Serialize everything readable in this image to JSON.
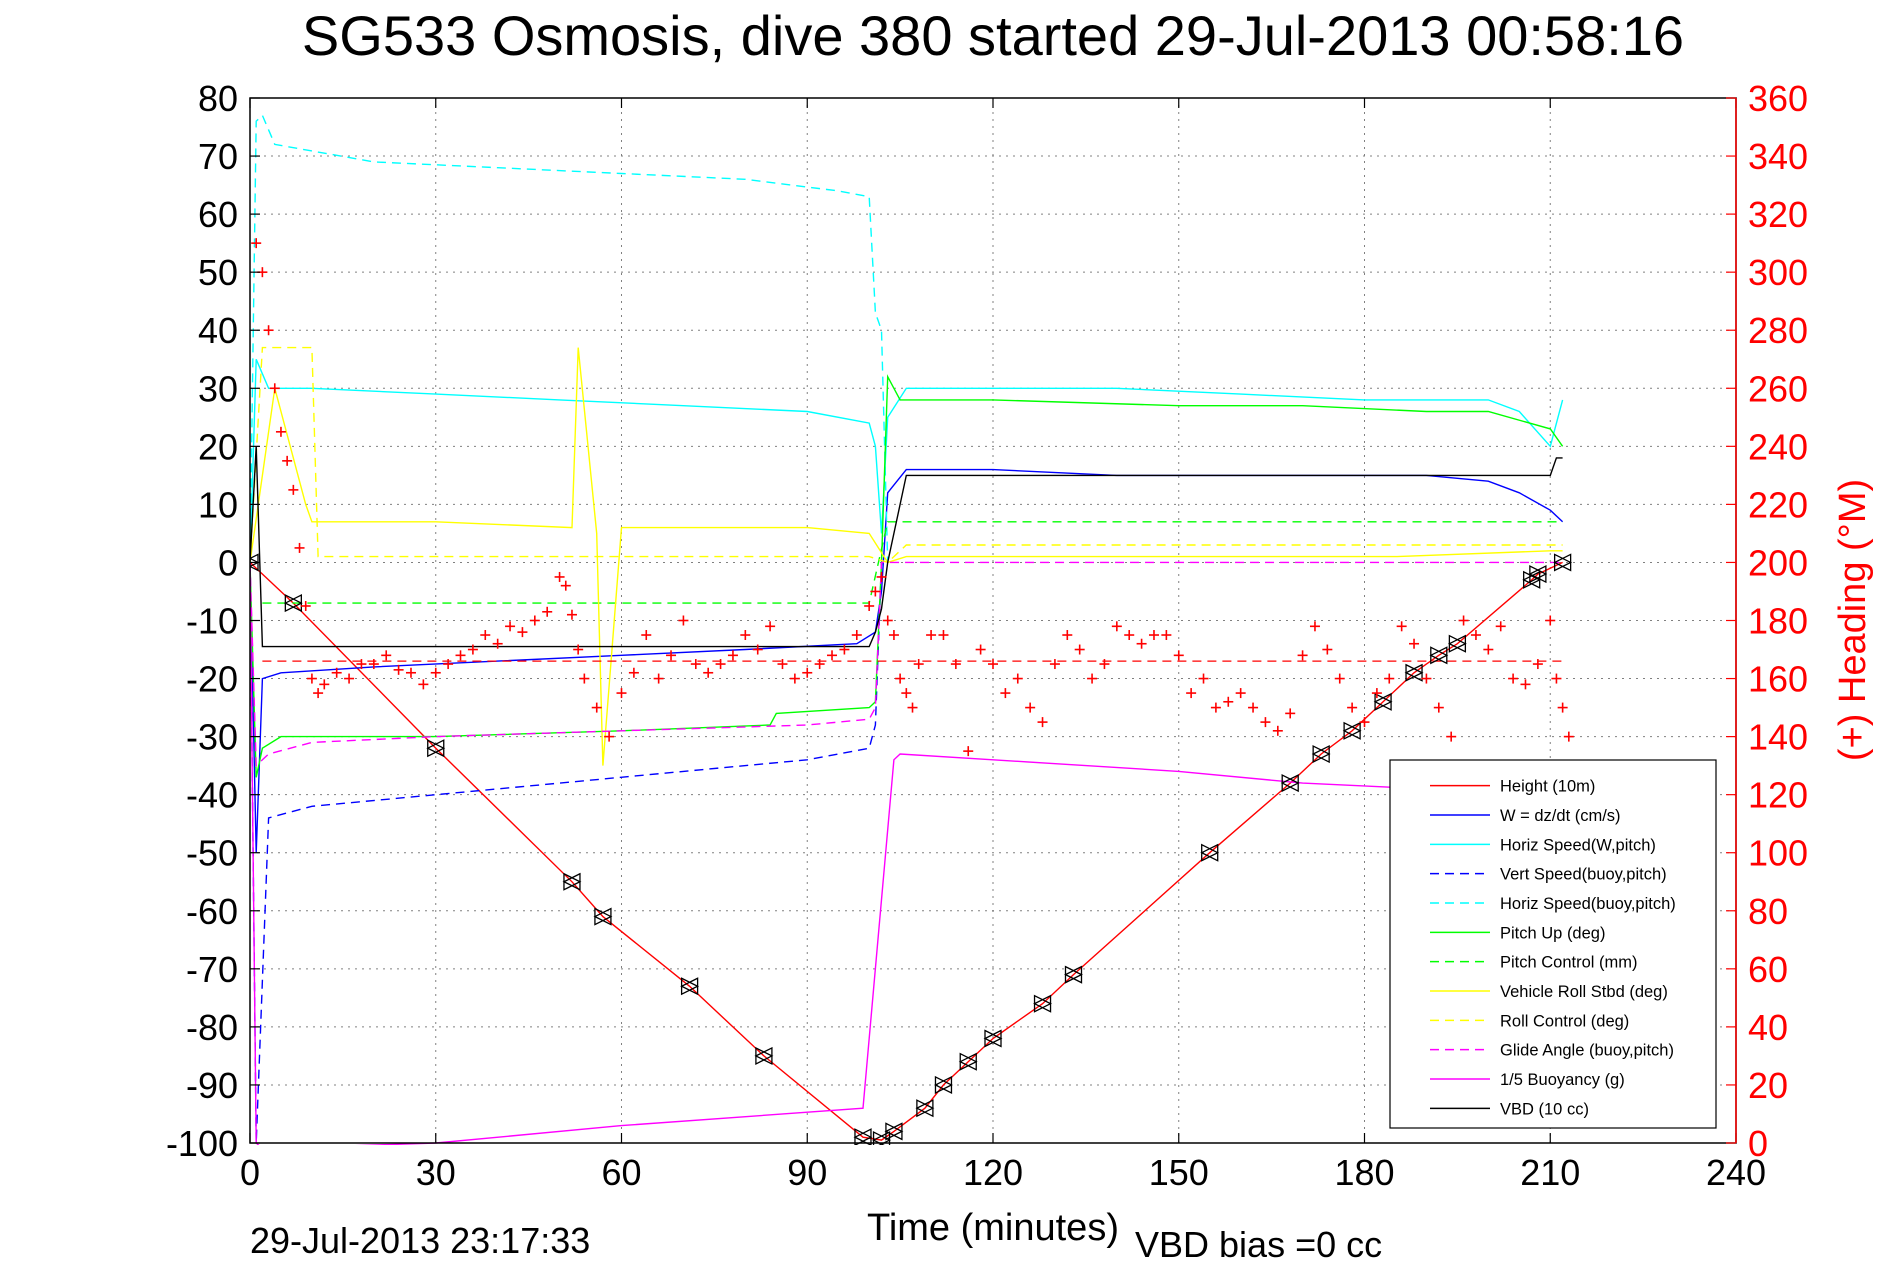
{
  "chart_data": {
    "type": "line",
    "title": "SG533 Osmosis, dive 380 started 29-Jul-2013 00:58:16",
    "xlabel": "Time (minutes)",
    "ylabel": "",
    "y2label": "(+) Heading (°M)",
    "xlim": [
      0,
      240
    ],
    "ylim": [
      -100,
      80
    ],
    "y2lim": [
      0,
      360
    ],
    "xticks": [
      "0",
      "30",
      "60",
      "90",
      "120",
      "150",
      "180",
      "210",
      "240"
    ],
    "yticks": [
      "80",
      "70",
      "60",
      "50",
      "40",
      "30",
      "20",
      "10",
      "0",
      "-10",
      "-20",
      "-30",
      "-40",
      "-50",
      "-60",
      "-70",
      "-80",
      "-90",
      "-100"
    ],
    "y2ticks": [
      "360",
      "340",
      "320",
      "300",
      "280",
      "260",
      "240",
      "220",
      "200",
      "180",
      "160",
      "140",
      "120",
      "100",
      "80",
      "60",
      "40",
      "20",
      "0"
    ],
    "grid": true,
    "legend_position": "bottom-right",
    "series": [
      {
        "name": "Height (10m)",
        "color": "#ff0000",
        "style": "solid",
        "x": [
          0,
          7,
          30,
          52,
          57,
          71,
          83,
          99,
          102,
          104,
          109,
          112,
          116,
          120,
          128,
          133,
          155,
          168,
          173,
          178,
          183,
          188,
          192,
          195,
          207,
          208,
          212
        ],
        "y": [
          0,
          -7,
          -32,
          -55,
          -61,
          -73,
          -85,
          -99,
          -99.5,
          -98,
          -94,
          -90,
          -86,
          -82,
          -76,
          -71,
          -50,
          -38,
          -33,
          -29,
          -24,
          -19,
          -16,
          -14,
          -3,
          -2,
          0
        ]
      },
      {
        "name": "W = dz/dt (cm/s)",
        "color": "#0000ff",
        "style": "solid",
        "x": [
          0,
          1,
          2,
          5,
          20,
          40,
          60,
          80,
          98,
          101,
          102,
          103,
          106,
          120,
          140,
          160,
          180,
          190,
          200,
          205,
          210,
          212
        ],
        "y": [
          0,
          -50,
          -20,
          -19,
          -18,
          -17,
          -16,
          -15,
          -14,
          -12,
          -5,
          12,
          16,
          16,
          15,
          15,
          15,
          15,
          14,
          12,
          9,
          7
        ]
      },
      {
        "name": "Horiz Speed(W,pitch)",
        "color": "#00ffff",
        "style": "solid",
        "x": [
          0,
          1,
          3,
          10,
          30,
          50,
          70,
          90,
          100,
          101,
          102,
          103,
          106,
          120,
          140,
          160,
          180,
          190,
          200,
          205,
          210,
          212
        ],
        "y": [
          0,
          35,
          30,
          30,
          29,
          28,
          27,
          26,
          24,
          20,
          5,
          25,
          30,
          30,
          30,
          29,
          28,
          28,
          28,
          26,
          20,
          28
        ]
      },
      {
        "name": "Vert Speed(buoy,pitch)",
        "color": "#0000ff",
        "style": "dashed",
        "x": [
          0,
          1,
          3,
          10,
          30,
          50,
          70,
          90,
          100,
          101,
          102
        ],
        "y": [
          0,
          -100,
          -44,
          -42,
          -40,
          -38,
          -36,
          -34,
          -32,
          -28,
          0
        ]
      },
      {
        "name": "Horiz Speed(buoy,pitch)",
        "color": "#00ffff",
        "style": "dashed",
        "x": [
          0,
          1,
          2,
          4,
          20,
          40,
          60,
          80,
          95,
          100,
          101,
          102,
          103
        ],
        "y": [
          0,
          76,
          77,
          72,
          69,
          68,
          67,
          66,
          64,
          63,
          43,
          40,
          0
        ]
      },
      {
        "name": "Pitch Up (deg)",
        "color": "#00ff00",
        "style": "solid",
        "x": [
          0,
          1,
          2,
          5,
          30,
          60,
          84,
          85,
          100,
          101,
          102,
          103,
          105,
          120,
          150,
          170,
          190,
          200,
          210,
          212
        ],
        "y": [
          0,
          -37,
          -32,
          -30,
          -30,
          -29,
          -28,
          -26,
          -25,
          -24,
          0,
          32,
          28,
          28,
          27,
          27,
          26,
          26,
          23,
          20
        ]
      },
      {
        "name": "Pitch Control (mm)",
        "color": "#00ff00",
        "style": "dashed",
        "x": [
          2,
          100,
          103,
          212
        ],
        "y": [
          -7,
          -7,
          7,
          7
        ]
      },
      {
        "name": "Vehicle Roll Stbd (deg)",
        "color": "#ffff00",
        "style": "solid",
        "x": [
          0,
          4,
          9,
          10,
          30,
          52,
          53,
          56,
          57,
          60,
          90,
          100,
          103,
          106,
          130,
          170,
          175,
          185,
          210,
          212
        ],
        "y": [
          0,
          30,
          10,
          7,
          7,
          6,
          37,
          5,
          -35,
          6,
          6,
          5,
          0,
          1,
          1,
          1,
          1,
          1,
          2,
          2
        ]
      },
      {
        "name": "Roll Control (deg)",
        "color": "#ffff00",
        "style": "dashed",
        "x": [
          0,
          2,
          10,
          11,
          30,
          90,
          100,
          103,
          106,
          150,
          200,
          210,
          212
        ],
        "y": [
          0,
          37,
          37,
          1,
          1,
          1,
          1,
          0,
          3,
          3,
          3,
          3,
          3
        ]
      },
      {
        "name": "Glide Angle (buoy,pitch)",
        "color": "#ff00ff",
        "style": "dashed",
        "x": [
          0,
          1,
          3,
          10,
          30,
          60,
          90,
          100,
          101,
          102,
          103,
          212
        ],
        "y": [
          0,
          -35,
          -33,
          -31,
          -30,
          -29,
          -28,
          -27,
          -25,
          0,
          0,
          0
        ]
      },
      {
        "name": "1/5 Buoyancy (g)",
        "color": "#ff00ff",
        "style": "solid",
        "x": [
          0,
          1,
          2,
          30,
          60,
          99,
          104,
          105,
          120,
          150,
          170,
          190,
          212
        ],
        "y": [
          0,
          -100,
          -101,
          -100,
          -97,
          -94,
          -34,
          -33,
          -34,
          -36,
          -38,
          -39,
          -40
        ]
      },
      {
        "name": "VBD (10 cc)",
        "color": "#000000",
        "style": "solid",
        "x": [
          0,
          1,
          2,
          100,
          101,
          102,
          103,
          105,
          106,
          210,
          211,
          212
        ],
        "y": [
          0,
          20,
          -14.5,
          -14.5,
          -12,
          -8,
          0,
          10,
          15,
          15,
          18,
          18
        ]
      }
    ],
    "heading_points": {
      "name": "(+) Heading (°M)",
      "color": "#ff0000",
      "marker": "+",
      "axis": "right",
      "x": [
        1,
        2,
        3,
        4,
        5,
        6,
        7,
        8,
        9,
        10,
        11,
        12,
        14,
        16,
        18,
        20,
        22,
        24,
        26,
        28,
        30,
        32,
        34,
        36,
        38,
        40,
        42,
        44,
        46,
        48,
        50,
        51,
        52,
        53,
        54,
        56,
        58,
        60,
        62,
        64,
        66,
        68,
        70,
        72,
        74,
        76,
        78,
        80,
        82,
        84,
        86,
        88,
        90,
        92,
        94,
        96,
        98,
        100,
        101,
        102,
        103,
        104,
        105,
        106,
        107,
        108,
        110,
        112,
        114,
        116,
        118,
        120,
        122,
        124,
        126,
        128,
        130,
        132,
        134,
        136,
        138,
        140,
        142,
        144,
        146,
        148,
        150,
        152,
        154,
        156,
        158,
        160,
        162,
        164,
        166,
        168,
        170,
        172,
        174,
        176,
        178,
        180,
        182,
        184,
        186,
        188,
        190,
        192,
        194,
        196,
        198,
        200,
        202,
        204,
        206,
        208,
        210,
        211,
        212,
        213
      ],
      "y": [
        310,
        300,
        280,
        260,
        245,
        235,
        225,
        205,
        185,
        160,
        155,
        158,
        162,
        160,
        165,
        165,
        168,
        163,
        162,
        158,
        162,
        165,
        168,
        170,
        175,
        172,
        178,
        176,
        180,
        183,
        195,
        192,
        182,
        170,
        160,
        150,
        140,
        155,
        162,
        175,
        160,
        168,
        180,
        165,
        162,
        165,
        168,
        175,
        170,
        178,
        165,
        160,
        162,
        165,
        168,
        170,
        175,
        185,
        190,
        195,
        180,
        175,
        160,
        155,
        150,
        165,
        175,
        175,
        165,
        135,
        170,
        165,
        155,
        160,
        150,
        145,
        165,
        175,
        170,
        160,
        165,
        178,
        175,
        172,
        175,
        175,
        168,
        155,
        160,
        150,
        152,
        155,
        150,
        145,
        142,
        148,
        168,
        178,
        170,
        160,
        150,
        145,
        155,
        160,
        178,
        172,
        160,
        150,
        140,
        180,
        175,
        170,
        178,
        160,
        158,
        165,
        180,
        160,
        150,
        140
      ]
    },
    "heading_reference": {
      "y": 166,
      "color": "#ff0000",
      "style": "dashed",
      "axis": "right"
    },
    "pitch_reference": {
      "y": -7,
      "color": "#00ff00",
      "style": "dashed"
    },
    "footer_left": "29-Jul-2013 23:17:33",
    "footer_right": "VBD bias =0 cc"
  }
}
